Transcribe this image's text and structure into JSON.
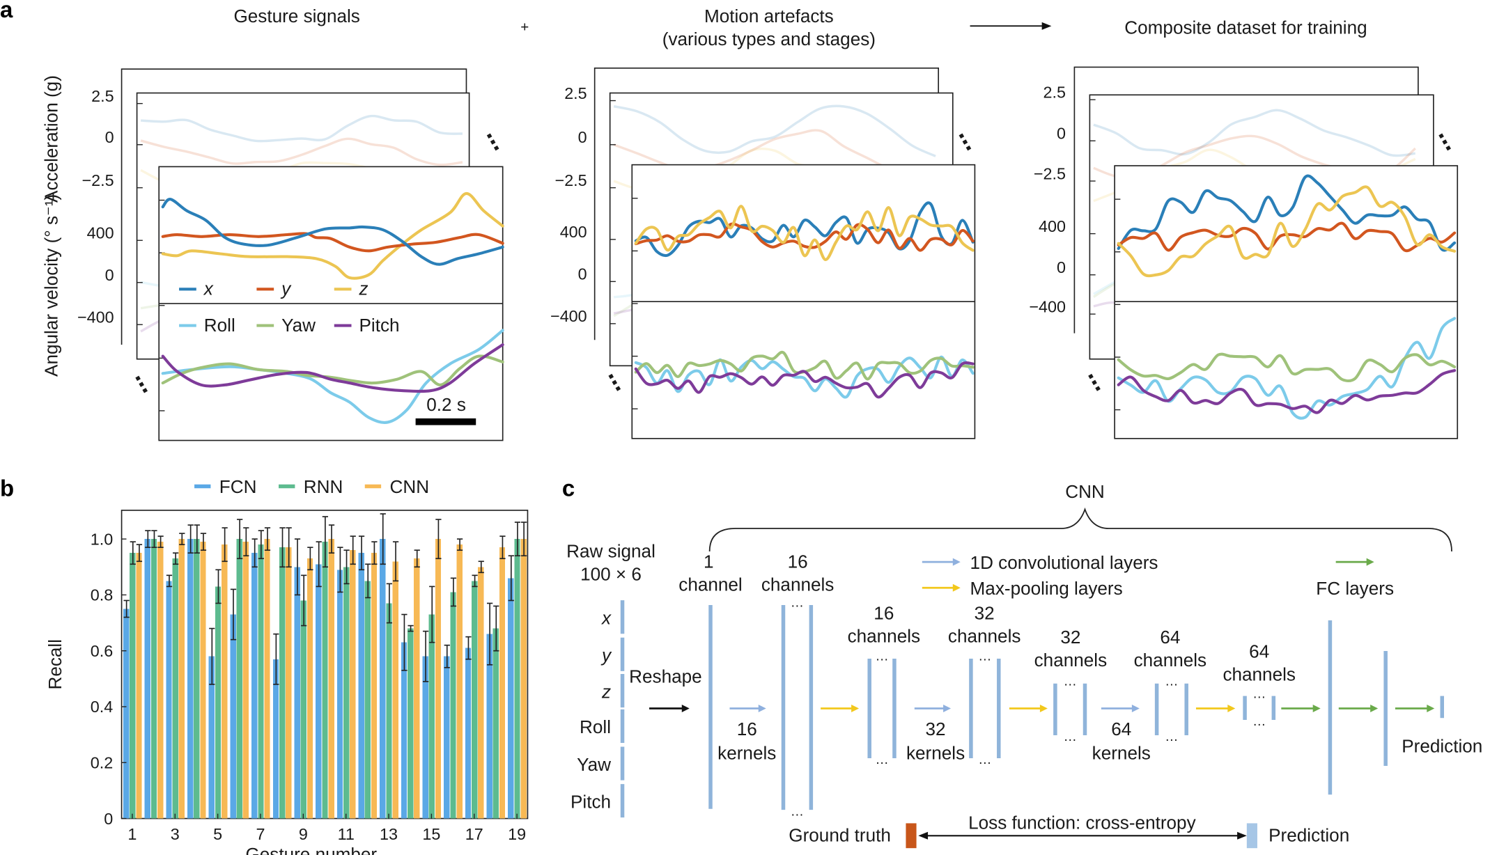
{
  "panel_a": {
    "panel_letter": "a",
    "title_gesture": "Gesture signals",
    "plus": "+",
    "title_motion_1": "Motion artefacts",
    "title_motion_2": "(various types and stages)",
    "title_composite": "Composite dataset for training",
    "ylabel_acc": "Acceleration (g)",
    "ylabel_gyro": "Angular velocity (° s⁻¹)",
    "acc_ticks": [
      "2.5",
      "0",
      "−2.5"
    ],
    "gyro_ticks": [
      "400",
      "0",
      "−400"
    ],
    "legend_acc": [
      "x",
      "y",
      "z"
    ],
    "legend_gyro": [
      "Roll",
      "Yaw",
      "Pitch"
    ],
    "scale_bar": "0.2 s",
    "ellipsis": "⋯",
    "colors": {
      "x": "#2a7fb8",
      "y": "#d2561f",
      "z": "#ecc552",
      "Roll": "#7ccbea",
      "Yaw": "#9fc27a",
      "Pitch": "#7e3b99"
    }
  },
  "chart_data": {
    "type": "bar",
    "panel_letter": "b",
    "xlabel": "Gesture number",
    "ylabel": "Recall",
    "ylim": [
      0,
      1.1
    ],
    "yticks": [
      "0",
      "0.2",
      "0.4",
      "0.6",
      "0.8",
      "1.0"
    ],
    "xticks": [
      "1",
      "3",
      "5",
      "7",
      "9",
      "11",
      "13",
      "15",
      "17",
      "19"
    ],
    "categories": [
      1,
      2,
      3,
      4,
      5,
      6,
      7,
      8,
      9,
      10,
      11,
      12,
      13,
      14,
      15,
      16,
      17,
      18,
      19
    ],
    "legend_position": "top",
    "grid": false,
    "series": [
      {
        "name": "FCN",
        "color": "#5aa8e6",
        "values": [
          0.75,
          1.0,
          0.85,
          1.0,
          0.58,
          0.73,
          0.95,
          0.57,
          0.9,
          0.91,
          0.89,
          0.95,
          1.0,
          0.63,
          0.58,
          0.58,
          0.61,
          0.66,
          0.86
        ],
        "errors": [
          0.03,
          0.03,
          0.02,
          0.05,
          0.1,
          0.09,
          0.05,
          0.09,
          0.1,
          0.08,
          0.08,
          0.06,
          0.09,
          0.1,
          0.09,
          0.04,
          0.04,
          0.11,
          0.08
        ]
      },
      {
        "name": "RNN",
        "color": "#5dbb8f",
        "values": [
          0.95,
          1.0,
          0.93,
          1.0,
          0.83,
          1.0,
          0.98,
          0.97,
          0.78,
          0.99,
          0.9,
          0.85,
          0.77,
          0.68,
          0.73,
          0.81,
          0.85,
          0.68,
          1.0
        ],
        "errors": [
          0.04,
          0.03,
          0.02,
          0.05,
          0.06,
          0.07,
          0.05,
          0.07,
          0.09,
          0.09,
          0.06,
          0.06,
          0.07,
          0.01,
          0.1,
          0.05,
          0.02,
          0.08,
          0.06
        ]
      },
      {
        "name": "CNN",
        "color": "#f7b955",
        "values": [
          0.95,
          0.99,
          1.0,
          0.99,
          0.98,
          0.99,
          1.0,
          0.97,
          0.93,
          1.0,
          0.96,
          0.95,
          0.92,
          0.93,
          1.0,
          0.98,
          0.9,
          0.97,
          1.0
        ],
        "errors": [
          0.03,
          0.02,
          0.02,
          0.03,
          0.06,
          0.05,
          0.04,
          0.07,
          0.04,
          0.05,
          0.05,
          0.04,
          0.07,
          0.03,
          0.07,
          0.02,
          0.02,
          0.04,
          0.06
        ]
      }
    ]
  },
  "panel_c": {
    "panel_letter": "c",
    "cnn_label": "CNN",
    "raw_signal": "Raw signal",
    "raw_dims": "100 × 6",
    "inputs": [
      "x",
      "y",
      "z",
      "Roll",
      "Yaw",
      "Pitch"
    ],
    "reshape": "Reshape",
    "layers": [
      {
        "num": "1",
        "unit": "channel"
      },
      {
        "num": "16",
        "unit": "channels"
      },
      {
        "num": "16",
        "unit": "channels"
      },
      {
        "num": "32",
        "unit": "channels"
      },
      {
        "num": "32",
        "unit": "channels"
      },
      {
        "num": "64",
        "unit": "channels"
      },
      {
        "num": "64",
        "unit": "channels"
      }
    ],
    "kernels": [
      {
        "num": "16",
        "unit": "kernels"
      },
      {
        "num": "32",
        "unit": "kernels"
      },
      {
        "num": "64",
        "unit": "kernels"
      }
    ],
    "legend_conv": "1D convolutional layers",
    "legend_pool": "Max-pooling layers",
    "legend_fc": "FC layers",
    "prediction": "Prediction",
    "ground_truth": "Ground truth",
    "loss": "Loss function: cross-entropy",
    "prediction_bottom": "Prediction",
    "dots": "…",
    "colors": {
      "conv": "#8fb0de",
      "pool": "#f2c81c",
      "fc": "#6aaa4a",
      "layer": "#8fb4da",
      "ground_truth": "#c8561a"
    }
  }
}
